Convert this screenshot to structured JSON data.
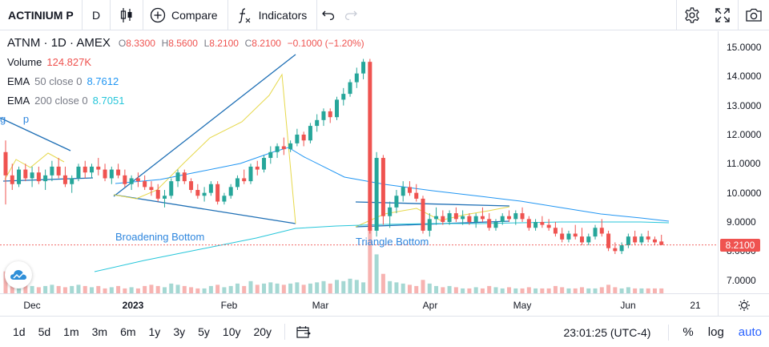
{
  "toolbar": {
    "symbol": "ACTINIUM P",
    "interval": "D",
    "chart_type_icon": "candles-icon",
    "compare_label": "Compare",
    "indicators_label": "Indicators",
    "undo_icon": "undo-icon",
    "redo_icon": "redo-icon",
    "right_icons": [
      "gear-icon",
      "fullscreen-icon",
      "camera-icon"
    ]
  },
  "legend": {
    "title": "ATNM · 1D · AMEX",
    "ohlc": [
      {
        "label": "O",
        "value": "8.3300"
      },
      {
        "label": "H",
        "value": "8.5600"
      },
      {
        "label": "L",
        "value": "8.2100"
      },
      {
        "label": "C",
        "value": "8.2100"
      }
    ],
    "change": "−0.1000 (−1.20%)",
    "volume_label": "Volume",
    "volume_value": "124.827K",
    "ema1_label": "EMA",
    "ema1_params": "50 close 0",
    "ema1_value": "8.7612",
    "ema2_label": "EMA",
    "ema2_params": "200 close 0",
    "ema2_value": "8.7051"
  },
  "patterns": {
    "broadening": "Broadening Bottom",
    "triangle": "Triangle Bottom",
    "cut_label": "g      p"
  },
  "price_axis": {
    "ticks": [
      "15.0000",
      "14.0000",
      "13.0000",
      "12.0000",
      "11.0000",
      "10.0000",
      "9.0000",
      "8.0000",
      "7.0000"
    ],
    "last_price": "8.2100"
  },
  "time_axis": {
    "ticks": [
      {
        "label": "Dec",
        "bold": false
      },
      {
        "label": "2023",
        "bold": true
      },
      {
        "label": "Feb",
        "bold": false
      },
      {
        "label": "Mar",
        "bold": false
      },
      {
        "label": "Apr",
        "bold": false
      },
      {
        "label": "May",
        "bold": false
      },
      {
        "label": "Jun",
        "bold": false
      },
      {
        "label": "21",
        "bold": false
      }
    ]
  },
  "bottom": {
    "ranges": [
      "1d",
      "5d",
      "1m",
      "3m",
      "6m",
      "1y",
      "3y",
      "5y",
      "10y",
      "20y"
    ],
    "clock": "23:01:25 (UTC-4)",
    "percent": "%",
    "log": "log",
    "auto": "auto"
  },
  "colors": {
    "up": "#26a69a",
    "down": "#ef5350",
    "ema50": "#2196f3",
    "ema200": "#26c6da",
    "pattern": "#2e86de",
    "zigzag": "#e6d84a"
  },
  "chart_data": {
    "type": "candlestick",
    "ylim": [
      6.55,
      15.55
    ],
    "candles": [
      [
        11.4,
        11.8,
        9.6,
        10.6
      ],
      [
        10.6,
        11.0,
        10.1,
        10.3
      ],
      [
        10.3,
        10.9,
        10.2,
        10.8
      ],
      [
        10.8,
        11.0,
        10.4,
        10.5
      ],
      [
        10.5,
        10.9,
        10.2,
        10.7
      ],
      [
        10.7,
        10.9,
        10.3,
        10.4
      ],
      [
        10.4,
        10.8,
        10.1,
        10.6
      ],
      [
        10.6,
        11.1,
        10.4,
        10.9
      ],
      [
        10.9,
        11.2,
        10.5,
        10.6
      ],
      [
        10.6,
        10.9,
        10.2,
        10.3
      ],
      [
        10.3,
        10.6,
        10.0,
        10.5
      ],
      [
        10.5,
        11.0,
        10.4,
        10.9
      ],
      [
        10.9,
        11.1,
        10.5,
        10.7
      ],
      [
        10.7,
        11.0,
        10.5,
        10.9
      ],
      [
        10.9,
        11.2,
        10.6,
        10.8
      ],
      [
        10.8,
        11.0,
        10.4,
        10.5
      ],
      [
        10.5,
        10.9,
        10.3,
        10.8
      ],
      [
        10.8,
        11.0,
        10.5,
        10.6
      ],
      [
        10.6,
        10.8,
        10.2,
        10.3
      ],
      [
        10.3,
        10.6,
        10.1,
        10.5
      ],
      [
        10.5,
        10.7,
        10.2,
        10.4
      ],
      [
        10.4,
        10.6,
        10.1,
        10.2
      ],
      [
        10.2,
        10.4,
        9.9,
        10.1
      ],
      [
        10.1,
        10.3,
        9.7,
        9.8
      ],
      [
        9.8,
        10.1,
        9.5,
        9.9
      ],
      [
        9.9,
        10.5,
        9.8,
        10.4
      ],
      [
        10.4,
        10.8,
        10.2,
        10.7
      ],
      [
        10.7,
        10.8,
        10.3,
        10.4
      ],
      [
        10.4,
        10.5,
        10.0,
        10.1
      ],
      [
        10.1,
        10.3,
        9.8,
        9.9
      ],
      [
        9.9,
        10.2,
        9.7,
        10.0
      ],
      [
        10.0,
        10.4,
        9.9,
        10.3
      ],
      [
        10.3,
        10.4,
        9.6,
        9.7
      ],
      [
        9.7,
        10.0,
        9.6,
        9.9
      ],
      [
        9.9,
        10.3,
        9.8,
        10.2
      ],
      [
        10.2,
        10.6,
        10.1,
        10.5
      ],
      [
        10.5,
        10.8,
        10.3,
        10.4
      ],
      [
        10.4,
        11.0,
        10.3,
        10.9
      ],
      [
        10.9,
        11.1,
        10.6,
        10.8
      ],
      [
        10.8,
        11.3,
        10.7,
        11.2
      ],
      [
        11.2,
        11.6,
        11.0,
        11.4
      ],
      [
        11.4,
        11.7,
        11.2,
        11.6
      ],
      [
        11.6,
        11.9,
        11.3,
        11.5
      ],
      [
        11.5,
        11.8,
        11.4,
        11.7
      ],
      [
        11.7,
        12.2,
        11.6,
        12.0
      ],
      [
        12.0,
        12.1,
        11.6,
        11.8
      ],
      [
        11.8,
        12.4,
        11.7,
        12.3
      ],
      [
        12.3,
        12.7,
        12.1,
        12.5
      ],
      [
        12.5,
        12.9,
        12.3,
        12.8
      ],
      [
        12.8,
        12.9,
        12.4,
        12.6
      ],
      [
        12.6,
        13.3,
        12.5,
        13.2
      ],
      [
        13.2,
        13.6,
        13.0,
        13.4
      ],
      [
        13.4,
        13.9,
        13.3,
        13.8
      ],
      [
        13.8,
        14.3,
        13.6,
        14.1
      ],
      [
        14.1,
        14.6,
        13.9,
        14.5
      ],
      [
        14.5,
        14.6,
        8.6,
        8.7
      ],
      [
        8.7,
        11.4,
        8.5,
        11.2
      ],
      [
        11.2,
        11.3,
        8.9,
        9.2
      ],
      [
        9.2,
        9.7,
        8.8,
        9.5
      ],
      [
        9.5,
        10.1,
        9.3,
        9.9
      ],
      [
        9.9,
        10.4,
        9.7,
        10.2
      ],
      [
        10.2,
        10.4,
        9.9,
        10.0
      ],
      [
        10.0,
        10.3,
        9.7,
        9.8
      ],
      [
        9.8,
        9.9,
        8.6,
        8.7
      ],
      [
        8.7,
        9.3,
        8.5,
        9.1
      ],
      [
        9.1,
        9.5,
        8.9,
        9.2
      ],
      [
        9.2,
        9.4,
        8.9,
        9.0
      ],
      [
        9.0,
        9.4,
        8.9,
        9.3
      ],
      [
        9.3,
        9.5,
        9.0,
        9.1
      ],
      [
        9.1,
        9.4,
        8.9,
        9.2
      ],
      [
        9.2,
        9.3,
        8.9,
        9.0
      ],
      [
        9.0,
        9.3,
        8.8,
        9.2
      ],
      [
        9.2,
        9.5,
        9.0,
        9.1
      ],
      [
        9.1,
        9.3,
        8.7,
        8.8
      ],
      [
        8.8,
        9.1,
        8.7,
        9.0
      ],
      [
        9.0,
        9.3,
        8.9,
        9.2
      ],
      [
        9.2,
        9.4,
        9.0,
        9.1
      ],
      [
        9.1,
        9.4,
        8.9,
        9.3
      ],
      [
        9.3,
        9.5,
        9.0,
        9.1
      ],
      [
        9.1,
        9.2,
        8.7,
        8.8
      ],
      [
        8.8,
        9.1,
        8.7,
        9.0
      ],
      [
        9.0,
        9.2,
        8.8,
        8.9
      ],
      [
        8.9,
        9.1,
        8.7,
        8.8
      ],
      [
        8.8,
        9.0,
        8.5,
        8.6
      ],
      [
        8.6,
        8.8,
        8.3,
        8.4
      ],
      [
        8.4,
        8.7,
        8.3,
        8.6
      ],
      [
        8.6,
        8.9,
        8.4,
        8.5
      ],
      [
        8.5,
        8.8,
        8.2,
        8.3
      ],
      [
        8.3,
        8.6,
        8.2,
        8.5
      ],
      [
        8.5,
        8.9,
        8.4,
        8.8
      ],
      [
        8.8,
        9.1,
        8.5,
        8.6
      ],
      [
        8.6,
        8.7,
        8.0,
        8.1
      ],
      [
        8.1,
        8.3,
        7.9,
        8.0
      ],
      [
        8.0,
        8.3,
        7.9,
        8.2
      ],
      [
        8.2,
        8.6,
        8.1,
        8.5
      ],
      [
        8.5,
        8.7,
        8.2,
        8.3
      ],
      [
        8.3,
        8.6,
        8.2,
        8.5
      ],
      [
        8.5,
        8.7,
        8.3,
        8.4
      ],
      [
        8.4,
        8.5,
        8.2,
        8.3
      ],
      [
        8.33,
        8.56,
        8.21,
        8.21
      ]
    ],
    "volume": [
      0.9,
      0.4,
      0.3,
      0.35,
      0.3,
      0.25,
      0.3,
      0.35,
      0.3,
      0.25,
      0.3,
      0.35,
      0.3,
      0.25,
      0.3,
      0.2,
      0.25,
      0.3,
      0.2,
      0.25,
      0.2,
      0.3,
      0.35,
      0.3,
      0.25,
      0.4,
      0.35,
      0.3,
      0.25,
      0.2,
      0.2,
      0.3,
      0.35,
      0.25,
      0.3,
      0.4,
      0.3,
      0.5,
      0.35,
      0.4,
      0.45,
      0.4,
      0.35,
      0.4,
      0.45,
      0.35,
      0.4,
      0.45,
      0.5,
      0.4,
      0.55,
      0.5,
      0.6,
      0.55,
      0.45,
      2.7,
      1.6,
      0.8,
      0.5,
      0.45,
      0.4,
      0.35,
      0.3,
      0.55,
      0.4,
      0.3,
      0.25,
      0.3,
      0.25,
      0.2,
      0.2,
      0.25,
      0.2,
      0.3,
      0.25,
      0.2,
      0.25,
      0.2,
      0.2,
      0.25,
      0.2,
      0.2,
      0.2,
      0.3,
      0.25,
      0.2,
      0.2,
      0.25,
      0.2,
      0.2,
      0.25,
      0.35,
      0.25,
      0.2,
      0.25,
      0.2,
      0.2,
      0.2,
      0.2,
      0.2
    ]
  }
}
